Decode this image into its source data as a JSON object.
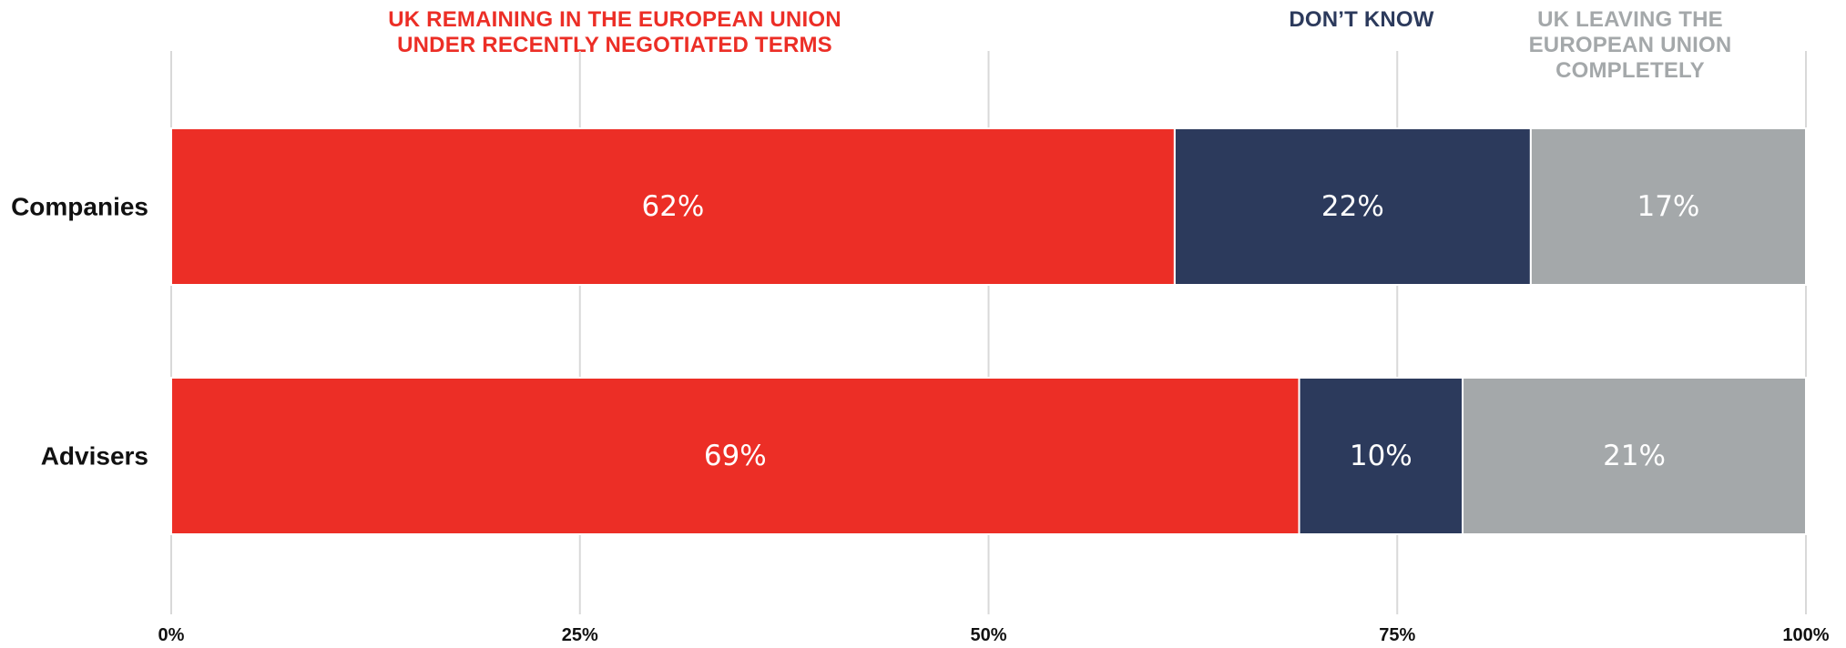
{
  "chart_data": {
    "type": "bar",
    "orientation": "horizontal",
    "stacked": true,
    "categories": [
      "Companies",
      "Advisers"
    ],
    "series": [
      {
        "name": "UK REMAINING IN THE EUROPEAN UNION UNDER RECENTLY NEGOTIATED TERMS",
        "values": [
          62,
          69
        ],
        "labels": [
          "62%",
          "69%"
        ],
        "color": "#ec2e26"
      },
      {
        "name": "DON’T KNOW",
        "values": [
          22,
          10
        ],
        "labels": [
          "22%",
          "10%"
        ],
        "color": "#2c3a5c"
      },
      {
        "name": "UK LEAVING THE EUROPEAN UNION COMPLETELY",
        "values": [
          17,
          21
        ],
        "labels": [
          "17%",
          "21%"
        ],
        "color": "#a4a8aa"
      }
    ],
    "xlim": [
      0,
      100
    ],
    "xticks": [
      0,
      25,
      50,
      75,
      100
    ],
    "xtick_labels": [
      "0%",
      "25%",
      "50%",
      "75%",
      "100%"
    ],
    "grid": true,
    "legend_position": "top",
    "title": "",
    "xlabel": "",
    "ylabel": ""
  }
}
